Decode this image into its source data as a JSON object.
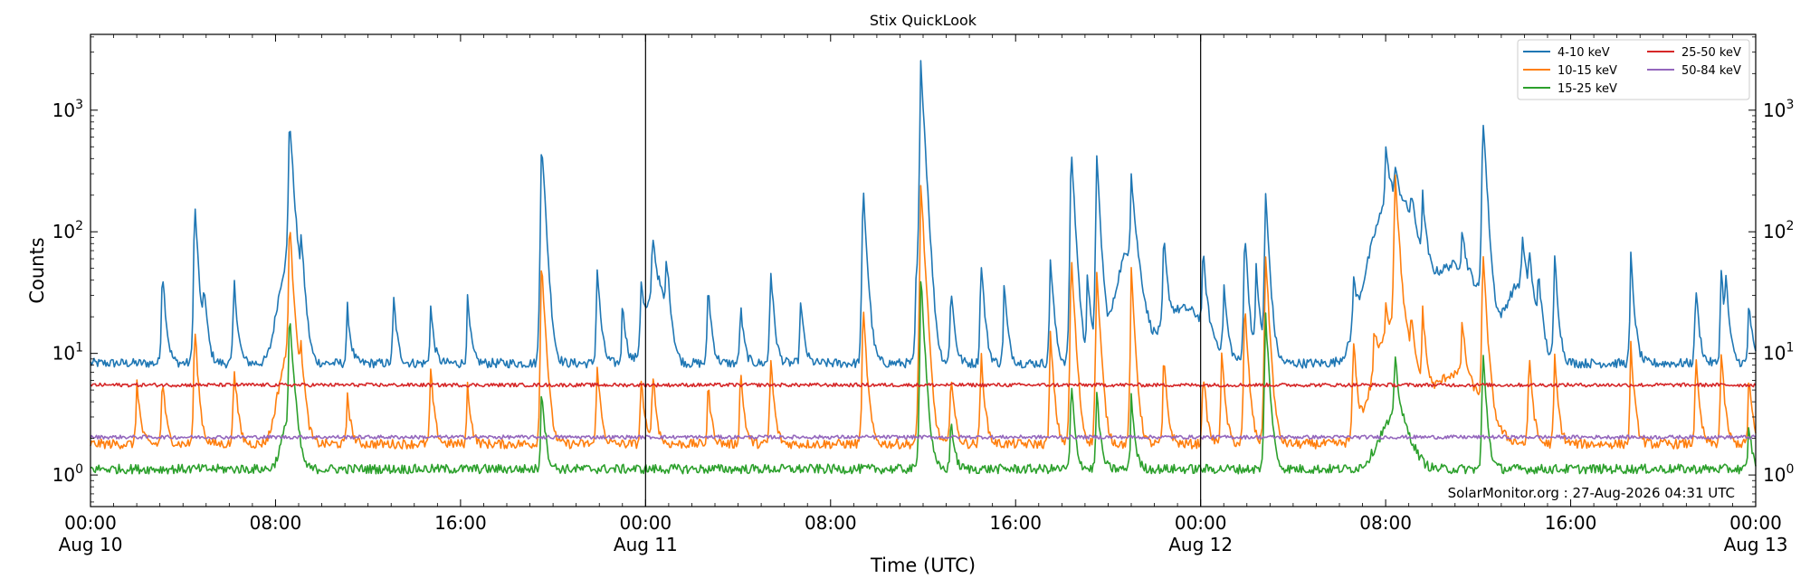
{
  "chart_data": {
    "type": "line",
    "title": "Stix QuickLook",
    "xlabel": "Time (UTC)",
    "ylabel": "Counts",
    "x_unit": "hours since Aug 10 00:00 UTC",
    "xlim": [
      0,
      72
    ],
    "ylim": [
      0.55,
      4200
    ],
    "yscale": "log",
    "grid": false,
    "day_boundaries": [
      24,
      48
    ],
    "legend_position": "top-right",
    "x_ticks": [
      {
        "x": 0,
        "line1": "00:00",
        "line2": "Aug 10"
      },
      {
        "x": 8,
        "line1": "08:00",
        "line2": ""
      },
      {
        "x": 16,
        "line1": "16:00",
        "line2": ""
      },
      {
        "x": 24,
        "line1": "00:00",
        "line2": "Aug 11"
      },
      {
        "x": 32,
        "line1": "08:00",
        "line2": ""
      },
      {
        "x": 40,
        "line1": "16:00",
        "line2": ""
      },
      {
        "x": 48,
        "line1": "00:00",
        "line2": "Aug 12"
      },
      {
        "x": 56,
        "line1": "08:00",
        "line2": ""
      },
      {
        "x": 64,
        "line1": "16:00",
        "line2": ""
      },
      {
        "x": 72,
        "line1": "00:00",
        "line2": "Aug 13"
      }
    ],
    "y_ticks": [
      {
        "value": 1,
        "base": "10",
        "exp": "0"
      },
      {
        "value": 10,
        "base": "10",
        "exp": "1"
      },
      {
        "value": 100,
        "base": "10",
        "exp": "2"
      },
      {
        "value": 1000,
        "base": "10",
        "exp": "3"
      }
    ],
    "series": [
      {
        "name": "4-10 keV",
        "color": "#1f77b4",
        "baseline": 8.3,
        "peaks": [
          [
            3.1,
            45
          ],
          [
            4.5,
            175
          ],
          [
            4.9,
            26
          ],
          [
            6.2,
            35
          ],
          [
            8.6,
            900
          ],
          [
            9.1,
            60
          ],
          [
            11.1,
            17
          ],
          [
            13.1,
            22
          ],
          [
            14.7,
            17
          ],
          [
            16.3,
            20
          ],
          [
            19.5,
            600
          ],
          [
            21.9,
            45
          ],
          [
            23.0,
            20
          ],
          [
            23.8,
            30
          ],
          [
            24.3,
            75
          ],
          [
            24.9,
            45
          ],
          [
            26.7,
            30
          ],
          [
            28.1,
            18
          ],
          [
            29.4,
            45
          ],
          [
            30.7,
            20
          ],
          [
            33.4,
            240
          ],
          [
            35.7,
            40
          ],
          [
            35.9,
            2600
          ],
          [
            37.2,
            30
          ],
          [
            38.5,
            55
          ],
          [
            39.5,
            30
          ],
          [
            41.5,
            55
          ],
          [
            42.4,
            520
          ],
          [
            43.1,
            38
          ],
          [
            43.5,
            420
          ],
          [
            45.0,
            250
          ],
          [
            46.4,
            80
          ],
          [
            49.0,
            28
          ],
          [
            48.1,
            55
          ],
          [
            49.9,
            100
          ],
          [
            50.8,
            210
          ],
          [
            50.4,
            45
          ],
          [
            54.6,
            30
          ],
          [
            56.0,
            380
          ],
          [
            56.4,
            150
          ],
          [
            57.6,
            135
          ],
          [
            57.1,
            90
          ],
          [
            60.2,
            950
          ],
          [
            59.3,
            60
          ],
          [
            61.9,
            60
          ],
          [
            62.2,
            45
          ],
          [
            62.6,
            35
          ],
          [
            63.3,
            60
          ],
          [
            66.6,
            55
          ],
          [
            69.4,
            30
          ],
          [
            70.5,
            45
          ],
          [
            70.7,
            30
          ],
          [
            71.7,
            20
          ]
        ],
        "broad": [
          [
            8.6,
            50,
            0.5
          ],
          [
            24.5,
            25,
            0.5
          ],
          [
            44.9,
            60,
            0.6
          ],
          [
            47.3,
            15,
            1.2
          ],
          [
            56.4,
            190,
            1.0
          ],
          [
            59.0,
            45,
            1.3
          ],
          [
            61.8,
            28,
            0.7
          ]
        ]
      },
      {
        "name": "10-15 keV",
        "color": "#ff7f0e",
        "baseline": 1.8,
        "peaks": [
          [
            2.0,
            4.5
          ],
          [
            3.1,
            5
          ],
          [
            4.5,
            16
          ],
          [
            6.2,
            7
          ],
          [
            8.6,
            115
          ],
          [
            9.1,
            6
          ],
          [
            11.1,
            3.2
          ],
          [
            14.7,
            6
          ],
          [
            16.3,
            4
          ],
          [
            19.5,
            60
          ],
          [
            21.9,
            7
          ],
          [
            23.8,
            5
          ],
          [
            24.3,
            6
          ],
          [
            26.7,
            4
          ],
          [
            28.1,
            6
          ],
          [
            29.4,
            8
          ],
          [
            33.4,
            24
          ],
          [
            35.9,
            255
          ],
          [
            37.2,
            6
          ],
          [
            38.5,
            9
          ],
          [
            41.5,
            13
          ],
          [
            42.4,
            65
          ],
          [
            43.5,
            48
          ],
          [
            45.0,
            45
          ],
          [
            46.4,
            8
          ],
          [
            48.1,
            6
          ],
          [
            48.9,
            9
          ],
          [
            49.9,
            25
          ],
          [
            50.8,
            68
          ],
          [
            54.6,
            12
          ],
          [
            55.5,
            10
          ],
          [
            56.0,
            14
          ],
          [
            56.4,
            330
          ],
          [
            57.1,
            10
          ],
          [
            57.6,
            18
          ],
          [
            60.2,
            66
          ],
          [
            59.3,
            13
          ],
          [
            62.2,
            9
          ],
          [
            63.3,
            8
          ],
          [
            66.6,
            10
          ],
          [
            69.4,
            8
          ],
          [
            70.5,
            9
          ],
          [
            71.7,
            5
          ]
        ],
        "broad": [
          [
            8.6,
            8,
            0.5
          ],
          [
            56.4,
            14,
            0.9
          ],
          [
            59.0,
            5,
            1.3
          ]
        ]
      },
      {
        "name": "15-25 keV",
        "color": "#2ca02c",
        "baseline": 1.12,
        "peaks": [
          [
            8.6,
            20
          ],
          [
            19.5,
            4.5
          ],
          [
            35.9,
            45
          ],
          [
            37.2,
            2
          ],
          [
            42.4,
            5
          ],
          [
            43.5,
            4
          ],
          [
            45.0,
            3.5
          ],
          [
            50.8,
            22
          ],
          [
            56.4,
            8
          ],
          [
            60.2,
            10
          ],
          [
            71.7,
            1.6
          ]
        ],
        "broad": [
          [
            8.6,
            1.6,
            0.4
          ],
          [
            56.4,
            1.8,
            0.8
          ]
        ]
      },
      {
        "name": "25-50 keV",
        "color": "#d62728",
        "baseline": 5.5,
        "peaks": [],
        "broad": []
      },
      {
        "name": "50-84 keV",
        "color": "#9467bd",
        "baseline": 2.05,
        "peaks": [],
        "broad": []
      }
    ]
  },
  "watermark": "SolarMonitor.org : 27-Aug-2026 04:31 UTC"
}
